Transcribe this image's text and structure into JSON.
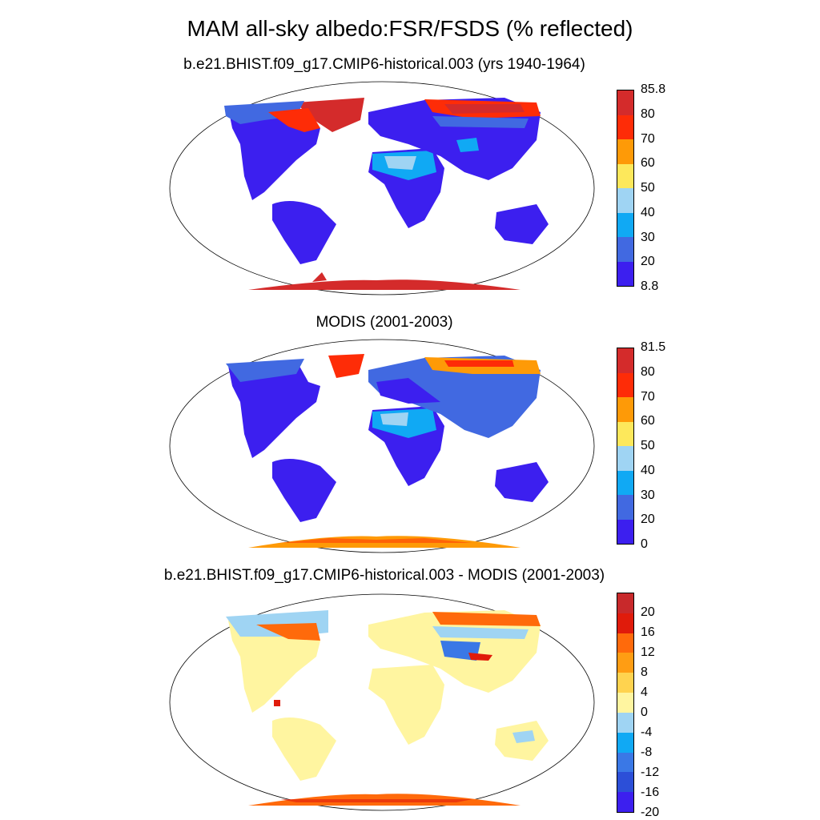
{
  "title": "MAM all-sky albedo:FSR/FSDS (% reflected)",
  "panels": [
    {
      "subtitle": "b.e21.BHIST.f09_g17.CMIP6-historical.003 (yrs 1940-1964)",
      "colors": [
        "#3c1fef",
        "#4169e1",
        "#10a9f4",
        "#9fd4f3",
        "#fde85b",
        "#fe9a07",
        "#fe2c07",
        "#d42b2b"
      ],
      "labels": [
        "85.8",
        "80",
        "70",
        "60",
        "50",
        "40",
        "30",
        "20",
        "8.8"
      ]
    },
    {
      "subtitle": "MODIS (2001-2003)",
      "colors": [
        "#3c1fef",
        "#4169e1",
        "#10a9f4",
        "#9fd4f3",
        "#fde85b",
        "#fe9a07",
        "#fe2c07",
        "#d42b2b"
      ],
      "labels": [
        "81.5",
        "80",
        "70",
        "60",
        "50",
        "40",
        "30",
        "20",
        "0"
      ]
    },
    {
      "subtitle": "b.e21.BHIST.f09_g17.CMIP6-historical.003 - MODIS (2001-2003)",
      "colors": [
        "#3c1fef",
        "#2c4fd8",
        "#3a78e6",
        "#10a9f4",
        "#9fd4f3",
        "#fff5a0",
        "#ffd34f",
        "#ff9d13",
        "#ff6a0b",
        "#e01b0b",
        "#c8292b"
      ],
      "labels": [
        "20",
        "16",
        "12",
        "8",
        "4",
        "0",
        "-4",
        "-8",
        "-12",
        "-16",
        "-20"
      ]
    }
  ]
}
